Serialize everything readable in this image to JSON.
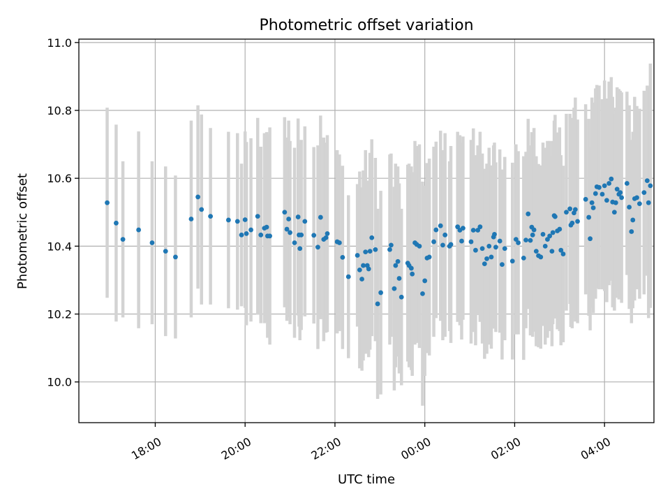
{
  "chart_data": {
    "type": "scatter",
    "title": "Photometric offset variation",
    "xlabel": "UTC time",
    "ylabel": "Photometric offset",
    "x_unit": "UTC hours (values past 24 are after midnight)",
    "xlim": [
      16.3,
      29.1
    ],
    "ylim": [
      9.88,
      11.01
    ],
    "x_ticks": [
      {
        "value": 18,
        "label": "18:00"
      },
      {
        "value": 20,
        "label": "20:00"
      },
      {
        "value": 22,
        "label": "22:00"
      },
      {
        "value": 24,
        "label": "00:00"
      },
      {
        "value": 26,
        "label": "02:00"
      },
      {
        "value": 28,
        "label": "04:00"
      }
    ],
    "y_ticks": [
      {
        "value": 10.0,
        "label": "10.0"
      },
      {
        "value": 10.2,
        "label": "10.2"
      },
      {
        "value": 10.4,
        "label": "10.4"
      },
      {
        "value": 10.6,
        "label": "10.6"
      },
      {
        "value": 10.8,
        "label": "10.8"
      },
      {
        "value": 11.0,
        "label": "11.0"
      }
    ],
    "grid": true,
    "marker_color": "#1f77b4",
    "errorbar_color": "#d3d3d3",
    "series": [
      {
        "points": [
          [
            16.93,
            10.528,
            0.28
          ],
          [
            17.13,
            10.468,
            0.29
          ],
          [
            17.28,
            10.42,
            0.23
          ],
          [
            17.63,
            10.448,
            0.29
          ],
          [
            17.93,
            10.41,
            0.24
          ],
          [
            18.23,
            10.385,
            0.25
          ],
          [
            18.45,
            10.368,
            0.24
          ],
          [
            18.8,
            10.48,
            0.29
          ],
          [
            18.95,
            10.545,
            0.27
          ],
          [
            19.03,
            10.508,
            0.28
          ],
          [
            19.23,
            10.488,
            0.26
          ],
          [
            19.63,
            10.477,
            0.26
          ],
          [
            19.83,
            10.473,
            0.26
          ],
          [
            19.92,
            10.433,
            0.21
          ],
          [
            20.0,
            10.478,
            0.26
          ],
          [
            20.03,
            10.437,
            0.27
          ],
          [
            20.13,
            10.448,
            0.27
          ],
          [
            20.28,
            10.488,
            0.29
          ],
          [
            20.35,
            10.433,
            0.26
          ],
          [
            20.43,
            10.453,
            0.28
          ],
          [
            20.48,
            10.456,
            0.28
          ],
          [
            20.5,
            10.43,
            0.3
          ],
          [
            20.55,
            10.43,
            0.32
          ],
          [
            20.88,
            10.5,
            0.28
          ],
          [
            20.93,
            10.45,
            0.27
          ],
          [
            20.97,
            10.48,
            0.29
          ],
          [
            21.0,
            10.44,
            0.27
          ],
          [
            21.1,
            10.41,
            0.28
          ],
          [
            21.18,
            10.486,
            0.29
          ],
          [
            21.2,
            10.433,
            0.27
          ],
          [
            21.22,
            10.393,
            0.27
          ],
          [
            21.25,
            10.433,
            0.28
          ],
          [
            21.33,
            10.473,
            0.28
          ],
          [
            21.53,
            10.432,
            0.26
          ],
          [
            21.62,
            10.397,
            0.3
          ],
          [
            21.68,
            10.485,
            0.3
          ],
          [
            21.75,
            10.42,
            0.3
          ],
          [
            21.8,
            10.425,
            0.28
          ],
          [
            21.83,
            10.437,
            0.29
          ],
          [
            22.05,
            10.413,
            0.27
          ],
          [
            22.1,
            10.41,
            0.26
          ],
          [
            22.17,
            10.367,
            0.27
          ],
          [
            22.3,
            10.31,
            0.24
          ],
          [
            22.5,
            10.373,
            0.21
          ],
          [
            22.55,
            10.33,
            0.29
          ],
          [
            22.6,
            10.303,
            0.27
          ],
          [
            22.63,
            10.343,
            0.28
          ],
          [
            22.68,
            10.383,
            0.3
          ],
          [
            22.72,
            10.343,
            0.25
          ],
          [
            22.75,
            10.333,
            0.26
          ],
          [
            22.78,
            10.385,
            0.29
          ],
          [
            22.82,
            10.425,
            0.29
          ],
          [
            22.9,
            10.39,
            0.27
          ],
          [
            22.95,
            10.23,
            0.28
          ],
          [
            23.02,
            10.263,
            0.3
          ],
          [
            23.22,
            10.39,
            0.28
          ],
          [
            23.25,
            10.403,
            0.27
          ],
          [
            23.32,
            10.275,
            0.3
          ],
          [
            23.35,
            10.343,
            0.3
          ],
          [
            23.4,
            10.355,
            0.28
          ],
          [
            23.43,
            10.305,
            0.28
          ],
          [
            23.48,
            10.25,
            0.26
          ],
          [
            23.62,
            10.35,
            0.29
          ],
          [
            23.65,
            10.343,
            0.3
          ],
          [
            23.7,
            10.335,
            0.3
          ],
          [
            23.72,
            10.318,
            0.3
          ],
          [
            23.78,
            10.41,
            0.3
          ],
          [
            23.82,
            10.405,
            0.29
          ],
          [
            23.88,
            10.4,
            0.3
          ],
          [
            23.95,
            10.26,
            0.33
          ],
          [
            24.05,
            10.365,
            0.28
          ],
          [
            24.1,
            10.368,
            0.29
          ],
          [
            24.0,
            10.298,
            0.28
          ],
          [
            24.2,
            10.413,
            0.28
          ],
          [
            24.25,
            10.448,
            0.26
          ],
          [
            24.35,
            10.46,
            0.28
          ],
          [
            24.4,
            10.403,
            0.28
          ],
          [
            24.45,
            10.433,
            0.3
          ],
          [
            24.55,
            10.4,
            0.25
          ],
          [
            24.58,
            10.405,
            0.29
          ],
          [
            24.73,
            10.457,
            0.28
          ],
          [
            24.78,
            10.447,
            0.28
          ],
          [
            24.82,
            10.415,
            0.29
          ],
          [
            24.85,
            10.453,
            0.27
          ],
          [
            25.03,
            10.413,
            0.3
          ],
          [
            25.08,
            10.447,
            0.3
          ],
          [
            25.13,
            10.388,
            0.28
          ],
          [
            25.18,
            10.447,
            0.25
          ],
          [
            25.23,
            10.457,
            0.28
          ],
          [
            25.28,
            10.393,
            0.28
          ],
          [
            25.33,
            10.348,
            0.28
          ],
          [
            25.38,
            10.363,
            0.28
          ],
          [
            25.43,
            10.4,
            0.29
          ],
          [
            25.48,
            10.368,
            0.27
          ],
          [
            25.53,
            10.427,
            0.27
          ],
          [
            25.55,
            10.435,
            0.27
          ],
          [
            25.58,
            10.397,
            0.25
          ],
          [
            25.67,
            10.415,
            0.27
          ],
          [
            25.72,
            10.346,
            0.28
          ],
          [
            25.78,
            10.393,
            0.27
          ],
          [
            25.95,
            10.356,
            0.29
          ],
          [
            26.03,
            10.42,
            0.28
          ],
          [
            26.08,
            10.41,
            0.27
          ],
          [
            26.2,
            10.365,
            0.3
          ],
          [
            26.25,
            10.418,
            0.26
          ],
          [
            26.3,
            10.495,
            0.28
          ],
          [
            26.35,
            10.417,
            0.28
          ],
          [
            26.38,
            10.456,
            0.28
          ],
          [
            26.4,
            10.433,
            0.3
          ],
          [
            26.43,
            10.448,
            0.3
          ],
          [
            26.48,
            10.385,
            0.28
          ],
          [
            26.53,
            10.372,
            0.27
          ],
          [
            26.58,
            10.368,
            0.27
          ],
          [
            26.63,
            10.435,
            0.27
          ],
          [
            26.68,
            10.4,
            0.29
          ],
          [
            26.73,
            10.42,
            0.29
          ],
          [
            26.78,
            10.43,
            0.28
          ],
          [
            26.83,
            10.385,
            0.28
          ],
          [
            26.85,
            10.44,
            0.27
          ],
          [
            26.88,
            10.49,
            0.28
          ],
          [
            26.9,
            10.487,
            0.3
          ],
          [
            26.95,
            10.445,
            0.29
          ],
          [
            27.0,
            10.45,
            0.3
          ],
          [
            27.03,
            10.388,
            0.28
          ],
          [
            27.08,
            10.377,
            0.26
          ],
          [
            27.15,
            10.5,
            0.29
          ],
          [
            27.23,
            10.51,
            0.28
          ],
          [
            27.25,
            10.462,
            0.3
          ],
          [
            27.28,
            10.468,
            0.31
          ],
          [
            27.32,
            10.498,
            0.31
          ],
          [
            27.35,
            10.508,
            0.33
          ],
          [
            27.4,
            10.473,
            0.3
          ],
          [
            27.58,
            10.538,
            0.28
          ],
          [
            27.65,
            10.485,
            0.29
          ],
          [
            27.68,
            10.422,
            0.27
          ],
          [
            27.72,
            10.528,
            0.31
          ],
          [
            27.75,
            10.513,
            0.31
          ],
          [
            27.8,
            10.555,
            0.31
          ],
          [
            27.83,
            10.575,
            0.3
          ],
          [
            27.88,
            10.573,
            0.3
          ],
          [
            27.95,
            10.553,
            0.28
          ],
          [
            28.0,
            10.578,
            0.31
          ],
          [
            28.05,
            10.535,
            0.3
          ],
          [
            28.1,
            10.585,
            0.3
          ],
          [
            28.15,
            10.598,
            0.3
          ],
          [
            28.18,
            10.53,
            0.31
          ],
          [
            28.22,
            10.5,
            0.29
          ],
          [
            28.25,
            10.528,
            0.28
          ],
          [
            28.28,
            10.568,
            0.3
          ],
          [
            28.32,
            10.553,
            0.31
          ],
          [
            28.35,
            10.558,
            0.3
          ],
          [
            28.38,
            10.543,
            0.31
          ],
          [
            28.5,
            10.585,
            0.27
          ],
          [
            28.55,
            10.515,
            0.3
          ],
          [
            28.6,
            10.443,
            0.27
          ],
          [
            28.63,
            10.477,
            0.26
          ],
          [
            28.67,
            10.54,
            0.3
          ],
          [
            28.72,
            10.543,
            0.27
          ],
          [
            28.78,
            10.525,
            0.28
          ],
          [
            28.88,
            10.558,
            0.3
          ],
          [
            28.95,
            10.593,
            0.28
          ],
          [
            28.98,
            10.528,
            0.34
          ],
          [
            29.02,
            10.578,
            0.36
          ]
        ]
      }
    ]
  }
}
